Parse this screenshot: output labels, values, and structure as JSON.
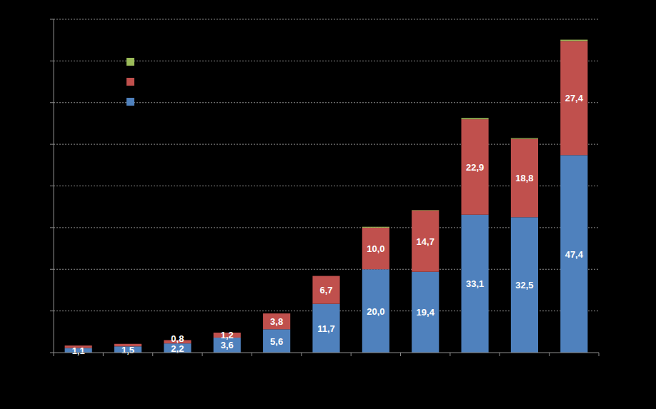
{
  "chart_data": {
    "type": "bar",
    "stacked": true,
    "data_labels": true,
    "tick_labels": false,
    "grid": true,
    "categories": [
      null,
      null,
      null,
      null,
      null,
      null,
      null,
      null,
      null,
      null,
      null
    ],
    "ylim": [
      0,
      80
    ],
    "yticks": [
      0,
      10,
      20,
      30,
      40,
      50,
      60,
      70,
      80
    ],
    "series": [
      {
        "color": "#4f81bd",
        "values": [
          1.1,
          1.5,
          2.2,
          3.6,
          5.6,
          11.7,
          20.0,
          19.4,
          33.1,
          32.5,
          47.4
        ],
        "value_labels": [
          "1,1",
          "1,5",
          "2,2",
          "3,6",
          "5,6",
          "11,7",
          "20,0",
          "19,4",
          "33,1",
          "32,5",
          "47,4"
        ]
      },
      {
        "color": "#c0504d",
        "values": [
          0.6,
          0.6,
          0.8,
          1.2,
          3.8,
          6.7,
          10.0,
          14.7,
          22.9,
          18.8,
          27.4
        ],
        "value_labels": [
          null,
          null,
          "0,8",
          "1,2",
          "3,8",
          "6,7",
          "10,0",
          "14,7",
          "22,9",
          "18,8",
          "27,4"
        ]
      },
      {
        "color": "#9bbb59",
        "values": [
          0,
          0,
          0,
          0,
          0,
          0,
          0.2,
          0.1,
          0.3,
          0.2,
          0.3
        ],
        "value_labels": [
          null,
          null,
          null,
          null,
          null,
          null,
          null,
          null,
          null,
          null,
          null
        ]
      }
    ]
  }
}
